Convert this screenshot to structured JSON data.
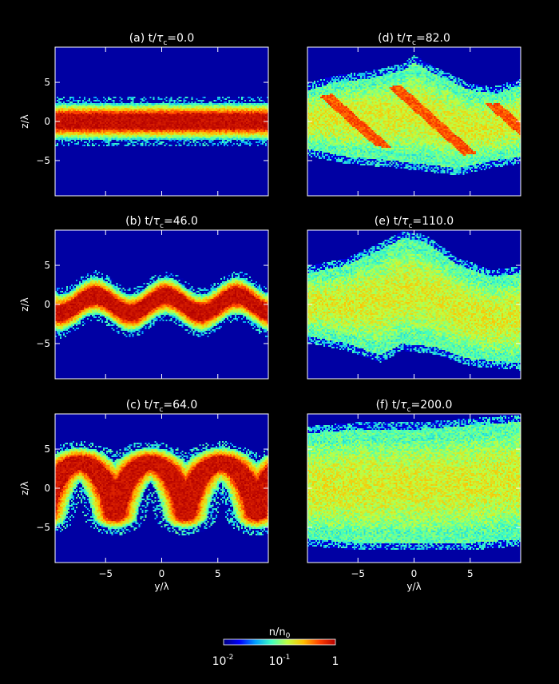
{
  "chart_data": [
    {
      "type": "heatmap",
      "panel": "a",
      "title": "(a) t/τ_c=0.0",
      "title_parts": [
        "(a) t/",
        "τ",
        "c",
        "=0.0"
      ],
      "xlim": [
        -9.5,
        9.5
      ],
      "ylim": [
        -9.5,
        9.5
      ],
      "xticks": [
        -5,
        0,
        5
      ],
      "yticks": [
        -5,
        0,
        5
      ],
      "xlabel": "",
      "ylabel": "z/λ",
      "layer_profile": {
        "amplitude": 0.0,
        "wavelength": 6.3,
        "phase": 0.0,
        "core_halfwidth": 1.0,
        "halo_halfwidth": 2.3,
        "mode": "layer"
      }
    },
    {
      "type": "heatmap",
      "panel": "b",
      "title": "(b) t/τ_c=46.0",
      "title_parts": [
        "(b) t/",
        "τ",
        "c",
        "=46.0"
      ],
      "xlim": [
        -9.5,
        9.5
      ],
      "ylim": [
        -9.5,
        9.5
      ],
      "xticks": [
        -5,
        0,
        5
      ],
      "yticks": [
        -5,
        0,
        5
      ],
      "xlabel": "",
      "ylabel": "z/λ",
      "layer_profile": {
        "amplitude": 1.1,
        "wavelength": 6.3,
        "phase": 1.2,
        "core_halfwidth": 1.0,
        "halo_halfwidth": 2.4,
        "mode": "layer"
      }
    },
    {
      "type": "heatmap",
      "panel": "c",
      "title": "(c) t/τ_c=64.0",
      "title_parts": [
        "(c) t/",
        "τ",
        "c",
        "=64.0"
      ],
      "xlim": [
        -9.5,
        9.5
      ],
      "ylim": [
        -9.5,
        9.5
      ],
      "xticks": [
        -5,
        0,
        5
      ],
      "yticks": [
        -5,
        0,
        5
      ],
      "xlabel": "y/λ",
      "ylabel": "z/λ",
      "layer_profile": {
        "amplitude": 3.2,
        "wavelength": 6.3,
        "phase": 1.0,
        "core_halfwidth": 0.9,
        "halo_halfwidth": 2.0,
        "mode": "kink"
      }
    },
    {
      "type": "heatmap",
      "panel": "d",
      "title": "(d) t/τ_c=82.0",
      "title_parts": [
        "(d) t/",
        "τ",
        "c",
        "=82.0"
      ],
      "xlim": [
        -9.5,
        9.5
      ],
      "ylim": [
        -9.5,
        9.5
      ],
      "xticks": [
        -5,
        0,
        5
      ],
      "yticks": [
        -5,
        0,
        5
      ],
      "xlabel": "",
      "ylabel": "",
      "layer_profile": {
        "amplitude": 0.0,
        "wavelength": 6.3,
        "phase": 0.0,
        "core_halfwidth": 0.0,
        "halo_halfwidth": 0.0,
        "mode": "turbulent",
        "upper_edge": [
          [
            -9.5,
            4.0
          ],
          [
            -7,
            5.0
          ],
          [
            -4,
            5.5
          ],
          [
            -1,
            6.5
          ],
          [
            0,
            7.5
          ],
          [
            2,
            6.0
          ],
          [
            5,
            4.0
          ],
          [
            7,
            3.5
          ],
          [
            9.5,
            4.5
          ]
        ],
        "lower_edge": [
          [
            -9.5,
            -3.5
          ],
          [
            -6,
            -4.5
          ],
          [
            -2,
            -5.0
          ],
          [
            1,
            -5.5
          ],
          [
            4,
            -6.0
          ],
          [
            7,
            -5.0
          ],
          [
            9.5,
            -4.5
          ]
        ]
      }
    },
    {
      "type": "heatmap",
      "panel": "e",
      "title": "(e) t/τ_c=110.0",
      "title_parts": [
        "(e) t/",
        "τ",
        "c",
        "=110.0"
      ],
      "xlim": [
        -9.5,
        9.5
      ],
      "ylim": [
        -9.5,
        9.5
      ],
      "xticks": [
        -5,
        0,
        5
      ],
      "yticks": [
        -5,
        0,
        5
      ],
      "xlabel": "",
      "ylabel": "",
      "layer_profile": {
        "amplitude": 0.0,
        "wavelength": 6.3,
        "phase": 0.0,
        "core_halfwidth": 0.0,
        "halo_halfwidth": 0.0,
        "mode": "turbulent",
        "upper_edge": [
          [
            -9.5,
            4.0
          ],
          [
            -6,
            5.0
          ],
          [
            -3,
            7.0
          ],
          [
            -1,
            8.5
          ],
          [
            1,
            8.0
          ],
          [
            4,
            5.0
          ],
          [
            7,
            3.5
          ],
          [
            9.5,
            4.0
          ]
        ],
        "lower_edge": [
          [
            -9.5,
            -4.0
          ],
          [
            -6,
            -5.0
          ],
          [
            -3,
            -6.5
          ],
          [
            -1,
            -5.0
          ],
          [
            2,
            -5.5
          ],
          [
            5,
            -7.0
          ],
          [
            9.5,
            -7.5
          ]
        ]
      }
    },
    {
      "type": "heatmap",
      "panel": "f",
      "title": "(f) t/τ_c=200.0",
      "title_parts": [
        "(f) t/",
        "τ",
        "c",
        "=200.0"
      ],
      "xlim": [
        -9.5,
        9.5
      ],
      "ylim": [
        -9.5,
        9.5
      ],
      "xticks": [
        -5,
        0,
        5
      ],
      "yticks": [
        -5,
        0,
        5
      ],
      "xlabel": "y/λ",
      "ylabel": "",
      "layer_profile": {
        "amplitude": 0.0,
        "wavelength": 6.3,
        "phase": 0.0,
        "core_halfwidth": 0.0,
        "halo_halfwidth": 0.0,
        "mode": "turbulent",
        "upper_edge": [
          [
            -9.5,
            7.0
          ],
          [
            -5,
            7.5
          ],
          [
            0,
            7.5
          ],
          [
            5,
            8.0
          ],
          [
            9.5,
            8.5
          ]
        ],
        "lower_edge": [
          [
            -9.5,
            -6.5
          ],
          [
            -5,
            -7.0
          ],
          [
            0,
            -7.0
          ],
          [
            5,
            -7.0
          ],
          [
            9.5,
            -6.5
          ]
        ]
      }
    }
  ],
  "colorbar": {
    "label_parts": [
      "n/n",
      "0"
    ],
    "scale": "log",
    "range": [
      0.01,
      1
    ],
    "tick_labels": [
      {
        "base": "10",
        "exp": "-2",
        "value": 0.01
      },
      {
        "base": "10",
        "exp": "-1",
        "value": 0.1
      },
      {
        "base": "1",
        "exp": "",
        "value": 1
      }
    ],
    "colors": [
      "#00007f",
      "#0000ff",
      "#00a0ff",
      "#40ffc0",
      "#c0ff40",
      "#ffc000",
      "#ff4000",
      "#b40000"
    ]
  }
}
